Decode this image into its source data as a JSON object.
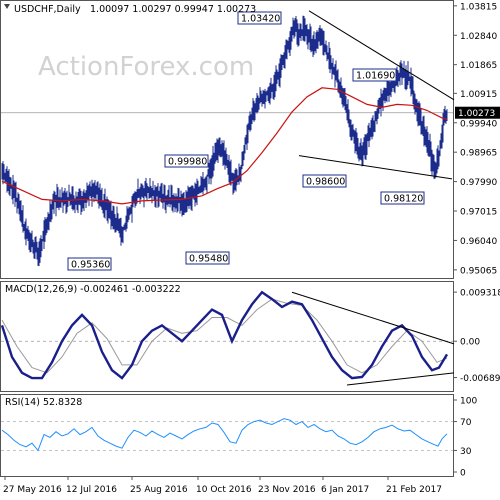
{
  "header": {
    "symbol_timeframe": "USDCHF,Daily",
    "ohlc": "1.00097 1.00297 0.99947 1.00273",
    "macd_title": "MACD(12,26,9) -0.002461 -0.003222",
    "rsi_title": "RSI(14) 52.8328"
  },
  "watermark": "ActionForex.com",
  "colors": {
    "bars": "#1c2c8c",
    "ma_line": "#cc1111",
    "macd_line": "#1a1f8c",
    "signal_line": "#9a9a9a",
    "trendline": "#000000",
    "rsi_line": "#1e90ff",
    "label_border": "#1c2c8c"
  },
  "chart_data": [
    {
      "type": "ohlc",
      "title": "USDCHF,Daily",
      "ylim": [
        0.9506,
        1.0381
      ],
      "y_ticks": [
        "1.03815",
        "1.02840",
        "1.01865",
        "1.00915",
        "0.99940",
        "0.98965",
        "0.97990",
        "0.97015",
        "0.96040",
        "0.95065"
      ],
      "current_price": "1.00273",
      "x_labels": [
        "27 May 2016",
        "12 Jul 2016",
        "25 Aug 2016",
        "10 Oct 2016",
        "23 Nov 2016",
        "6 Jan 2017",
        "21 Feb 2017"
      ],
      "annotations": [
        {
          "text": "1.03420",
          "value": 1.0342
        },
        {
          "text": "1.01690",
          "value": 1.0169
        },
        {
          "text": "0.99980",
          "value": 0.9998
        },
        {
          "text": "0.98600",
          "value": 0.986
        },
        {
          "text": "0.98120",
          "value": 0.9812
        },
        {
          "text": "0.95360",
          "value": 0.9536
        },
        {
          "text": "0.95480",
          "value": 0.9548
        }
      ],
      "close_path": [
        [
          0,
          0.9835
        ],
        [
          8,
          0.979
        ],
        [
          15,
          0.9735
        ],
        [
          22,
          0.9645
        ],
        [
          30,
          0.959
        ],
        [
          37,
          0.956
        ],
        [
          43,
          0.964
        ],
        [
          52,
          0.974
        ],
        [
          60,
          0.9735
        ],
        [
          68,
          0.9745
        ],
        [
          75,
          0.973
        ],
        [
          84,
          0.975
        ],
        [
          93,
          0.9775
        ],
        [
          100,
          0.9735
        ],
        [
          108,
          0.969
        ],
        [
          115,
          0.9655
        ],
        [
          120,
          0.962
        ],
        [
          127,
          0.97
        ],
        [
          135,
          0.9765
        ],
        [
          145,
          0.977
        ],
        [
          155,
          0.976
        ],
        [
          165,
          0.974
        ],
        [
          175,
          0.9735
        ],
        [
          183,
          0.973
        ],
        [
          190,
          0.975
        ],
        [
          198,
          0.977
        ],
        [
          205,
          0.9815
        ],
        [
          212,
          0.9885
        ],
        [
          218,
          0.991
        ],
        [
          225,
          0.986
        ],
        [
          232,
          0.979
        ],
        [
          238,
          0.982
        ],
        [
          243,
          0.993
        ],
        [
          248,
          1.001
        ],
        [
          255,
          1.006
        ],
        [
          262,
          1.008
        ],
        [
          270,
          1.011
        ],
        [
          278,
          1.017
        ],
        [
          285,
          1.024
        ],
        [
          292,
          1.032
        ],
        [
          297,
          1.028
        ],
        [
          303,
          1.031
        ],
        [
          310,
          1.024
        ],
        [
          317,
          1.029
        ],
        [
          324,
          1.023
        ],
        [
          330,
          1.018
        ],
        [
          336,
          1.013
        ],
        [
          342,
          1.007
        ],
        [
          348,
          0.998
        ],
        [
          355,
          0.992
        ],
        [
          360,
          0.989
        ],
        [
          367,
          0.995
        ],
        [
          374,
          1.001
        ],
        [
          380,
          1.008
        ],
        [
          387,
          1.011
        ],
        [
          393,
          1.014
        ],
        [
          400,
          1.016
        ],
        [
          407,
          1.014
        ],
        [
          413,
          1.006
        ],
        [
          420,
          0.998
        ],
        [
          426,
          0.992
        ],
        [
          432,
          0.983
        ],
        [
          437,
          0.989
        ],
        [
          442,
          1.001
        ],
        [
          445,
          1.0027
        ]
      ],
      "ma_path": [
        [
          0,
          0.98
        ],
        [
          20,
          0.977
        ],
        [
          40,
          0.974
        ],
        [
          60,
          0.9735
        ],
        [
          80,
          0.974
        ],
        [
          100,
          0.9735
        ],
        [
          120,
          0.9725
        ],
        [
          140,
          0.9735
        ],
        [
          160,
          0.9738
        ],
        [
          180,
          0.974
        ],
        [
          200,
          0.9752
        ],
        [
          215,
          0.9775
        ],
        [
          230,
          0.9795
        ],
        [
          245,
          0.9835
        ],
        [
          260,
          0.9895
        ],
        [
          275,
          0.996
        ],
        [
          290,
          1.003
        ],
        [
          305,
          1.008
        ],
        [
          320,
          1.011
        ],
        [
          335,
          1.0105
        ],
        [
          350,
          1.008
        ],
        [
          365,
          1.0055
        ],
        [
          380,
          1.0045
        ],
        [
          395,
          1.0055
        ],
        [
          410,
          1.0052
        ],
        [
          425,
          1.0035
        ],
        [
          440,
          1.001
        ],
        [
          445,
          1.0005
        ]
      ]
    },
    {
      "type": "line",
      "title": "MACD(12,26,9) -0.002461 -0.003222",
      "ylim": [
        -0.0085,
        0.0101
      ],
      "y_ticks": [
        "0.009318",
        "0.00",
        "-0.006894"
      ],
      "series": [
        {
          "name": "MACD",
          "points": [
            [
              0,
              0.003
            ],
            [
              10,
              -0.003
            ],
            [
              20,
              -0.006
            ],
            [
              30,
              -0.007
            ],
            [
              40,
              -0.007
            ],
            [
              50,
              -0.004
            ],
            [
              60,
              0.0
            ],
            [
              70,
              0.003
            ],
            [
              80,
              0.005
            ],
            [
              90,
              0.003
            ],
            [
              100,
              -0.002
            ],
            [
              110,
              -0.0055
            ],
            [
              120,
              -0.007
            ],
            [
              130,
              -0.0045
            ],
            [
              140,
              0.0
            ],
            [
              150,
              0.002
            ],
            [
              160,
              0.003
            ],
            [
              170,
              0.0015
            ],
            [
              180,
              0.0
            ],
            [
              190,
              0.002
            ],
            [
              200,
              0.004
            ],
            [
              210,
              0.006
            ],
            [
              220,
              0.005
            ],
            [
              230,
              0.0
            ],
            [
              240,
              0.004
            ],
            [
              250,
              0.007
            ],
            [
              260,
              0.0093
            ],
            [
              270,
              0.008
            ],
            [
              280,
              0.0065
            ],
            [
              290,
              0.0075
            ],
            [
              300,
              0.007
            ],
            [
              310,
              0.004
            ],
            [
              320,
              0.0005
            ],
            [
              330,
              -0.003
            ],
            [
              340,
              -0.0055
            ],
            [
              350,
              -0.007
            ],
            [
              360,
              -0.0068
            ],
            [
              370,
              -0.0045
            ],
            [
              380,
              -0.001
            ],
            [
              390,
              0.002
            ],
            [
              400,
              0.003
            ],
            [
              410,
              0.001
            ],
            [
              420,
              -0.003
            ],
            [
              430,
              -0.0055
            ],
            [
              437,
              -0.005
            ],
            [
              445,
              -0.0025
            ]
          ]
        },
        {
          "name": "Signal",
          "points": [
            [
              0,
              0.004
            ],
            [
              15,
              -0.001
            ],
            [
              30,
              -0.005
            ],
            [
              45,
              -0.006
            ],
            [
              60,
              -0.003
            ],
            [
              75,
              0.0015
            ],
            [
              90,
              0.0035
            ],
            [
              105,
              0.0005
            ],
            [
              120,
              -0.0045
            ],
            [
              135,
              -0.0045
            ],
            [
              150,
              0.0
            ],
            [
              165,
              0.0025
            ],
            [
              180,
              0.0015
            ],
            [
              195,
              0.002
            ],
            [
              210,
              0.0045
            ],
            [
              225,
              0.0045
            ],
            [
              240,
              0.003
            ],
            [
              255,
              0.006
            ],
            [
              270,
              0.008
            ],
            [
              285,
              0.0072
            ],
            [
              300,
              0.0068
            ],
            [
              315,
              0.004
            ],
            [
              330,
              0.0
            ],
            [
              345,
              -0.0045
            ],
            [
              360,
              -0.006
            ],
            [
              375,
              -0.0045
            ],
            [
              390,
              -0.001
            ],
            [
              405,
              0.002
            ],
            [
              420,
              0.0
            ],
            [
              435,
              -0.004
            ],
            [
              445,
              -0.0032
            ]
          ]
        }
      ]
    },
    {
      "type": "line",
      "title": "RSI(14) 52.8328",
      "ylim": [
        0,
        100
      ],
      "y_ticks": [
        "100",
        "70",
        "30",
        "0"
      ],
      "series": [
        {
          "name": "RSI(14)",
          "points": [
            [
              0,
              58
            ],
            [
              6,
              52
            ],
            [
              12,
              44
            ],
            [
              18,
              38
            ],
            [
              24,
              35
            ],
            [
              30,
              40
            ],
            [
              36,
              30
            ],
            [
              42,
              52
            ],
            [
              48,
              48
            ],
            [
              54,
              56
            ],
            [
              60,
              50
            ],
            [
              66,
              53
            ],
            [
              72,
              60
            ],
            [
              78,
              52
            ],
            [
              84,
              56
            ],
            [
              90,
              62
            ],
            [
              96,
              50
            ],
            [
              102,
              44
            ],
            [
              108,
              40
            ],
            [
              114,
              36
            ],
            [
              120,
              33
            ],
            [
              126,
              48
            ],
            [
              132,
              58
            ],
            [
              138,
              55
            ],
            [
              144,
              50
            ],
            [
              150,
              57
            ],
            [
              156,
              52
            ],
            [
              162,
              48
            ],
            [
              168,
              54
            ],
            [
              174,
              50
            ],
            [
              180,
              46
            ],
            [
              186,
              52
            ],
            [
              192,
              57
            ],
            [
              198,
              60
            ],
            [
              204,
              62
            ],
            [
              210,
              68
            ],
            [
              216,
              66
            ],
            [
              222,
              55
            ],
            [
              228,
              42
            ],
            [
              234,
              40
            ],
            [
              240,
              58
            ],
            [
              246,
              66
            ],
            [
              252,
              70
            ],
            [
              258,
              72
            ],
            [
              264,
              68
            ],
            [
              270,
              66
            ],
            [
              276,
              70
            ],
            [
              282,
              74
            ],
            [
              288,
              72
            ],
            [
              294,
              66
            ],
            [
              300,
              70
            ],
            [
              306,
              62
            ],
            [
              312,
              66
            ],
            [
              318,
              60
            ],
            [
              324,
              56
            ],
            [
              330,
              58
            ],
            [
              336,
              50
            ],
            [
              342,
              46
            ],
            [
              348,
              40
            ],
            [
              354,
              38
            ],
            [
              360,
              42
            ],
            [
              366,
              48
            ],
            [
              372,
              56
            ],
            [
              378,
              60
            ],
            [
              384,
              62
            ],
            [
              390,
              65
            ],
            [
              396,
              60
            ],
            [
              402,
              57
            ],
            [
              408,
              58
            ],
            [
              414,
              52
            ],
            [
              420,
              46
            ],
            [
              426,
              42
            ],
            [
              432,
              38
            ],
            [
              436,
              36
            ],
            [
              440,
              46
            ],
            [
              445,
              53
            ]
          ]
        }
      ]
    }
  ]
}
